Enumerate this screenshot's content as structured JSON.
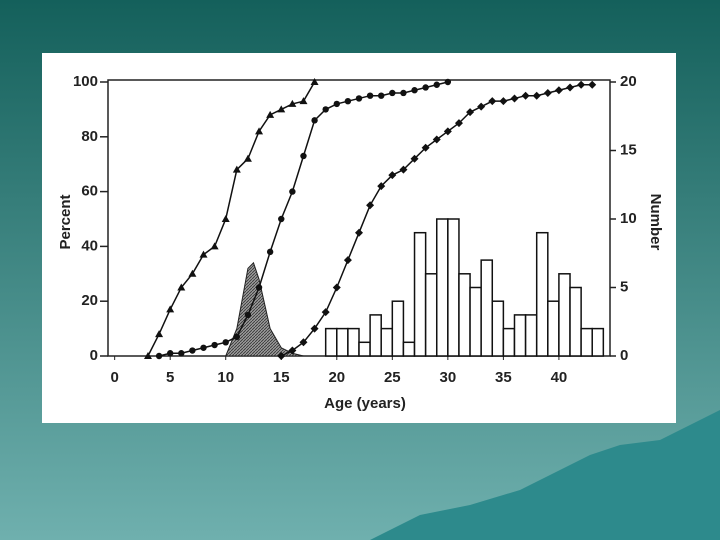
{
  "chart_data": [
    {
      "type": "line",
      "xlabel": "Age (years)",
      "ylabel": "Percent",
      "y2label": "Number",
      "xlim": [
        -0.6,
        44.6
      ],
      "xticks": [
        0,
        5,
        10,
        15,
        20,
        25,
        30,
        35,
        40
      ],
      "ylim": [
        0,
        100
      ],
      "yticks": [
        0,
        20,
        40,
        60,
        80,
        100
      ],
      "y2lim": [
        0,
        20
      ],
      "y2ticks": [
        0,
        5,
        10,
        15,
        20
      ],
      "x": [
        3,
        4,
        5,
        6,
        7,
        8,
        9,
        10,
        11,
        12,
        13,
        14,
        15,
        16,
        17,
        18,
        19,
        20,
        21,
        22,
        23,
        24,
        25,
        26,
        27,
        28,
        29,
        30,
        31,
        32,
        33,
        34,
        35,
        36,
        37,
        38,
        39,
        40,
        41,
        42,
        43,
        44
      ],
      "series": [
        {
          "color": "#111111",
          "marker": "triangle",
          "values": [
            0,
            8,
            17,
            25,
            30,
            37,
            40,
            50,
            68,
            72,
            82,
            88,
            90,
            92,
            93,
            100,
            null,
            null,
            null,
            null,
            null,
            null,
            null,
            null,
            null,
            null,
            null,
            null,
            null,
            null,
            null,
            null,
            null,
            null,
            null,
            null,
            null,
            null,
            null,
            null,
            null,
            null
          ]
        },
        {
          "color": "#111111",
          "marker": "circle",
          "values": [
            null,
            0,
            1,
            1,
            2,
            3,
            4,
            5,
            7,
            15,
            25,
            38,
            50,
            60,
            73,
            86,
            90,
            92,
            93,
            94,
            95,
            95,
            96,
            96,
            97,
            98,
            99,
            100,
            null,
            null,
            null,
            null,
            null,
            null,
            null,
            null,
            null,
            null,
            null,
            null,
            null,
            null
          ]
        },
        {
          "color": "#111111",
          "marker": "diamond",
          "values": [
            null,
            null,
            null,
            null,
            null,
            null,
            null,
            null,
            null,
            null,
            null,
            null,
            0,
            2,
            5,
            10,
            16,
            25,
            35,
            45,
            55,
            62,
            66,
            68,
            72,
            76,
            79,
            82,
            85,
            89,
            91,
            93,
            93,
            94,
            95,
            95,
            96,
            97,
            98,
            99,
            99,
            null
          ]
        }
      ]
    },
    {
      "type": "area",
      "color": "#8a8a8a",
      "x": [
        10,
        11,
        12,
        12.5,
        13,
        14,
        15,
        16,
        17
      ],
      "values": [
        0,
        10,
        32,
        34,
        28,
        10,
        3,
        1,
        0
      ]
    },
    {
      "type": "histogram",
      "axis": "y2",
      "color": "#ffffff",
      "bins": [
        19,
        20,
        21,
        22,
        23,
        24,
        25,
        26,
        27,
        28,
        29,
        30,
        31,
        32,
        33,
        34,
        35,
        36,
        37,
        38,
        39,
        40,
        41,
        42,
        43,
        44
      ],
      "values": [
        2,
        2,
        2,
        1,
        3,
        2,
        4,
        1,
        9,
        6,
        10,
        10,
        6,
        5,
        7,
        4,
        2,
        3,
        3,
        9,
        4,
        6,
        5,
        2,
        2
      ]
    }
  ]
}
